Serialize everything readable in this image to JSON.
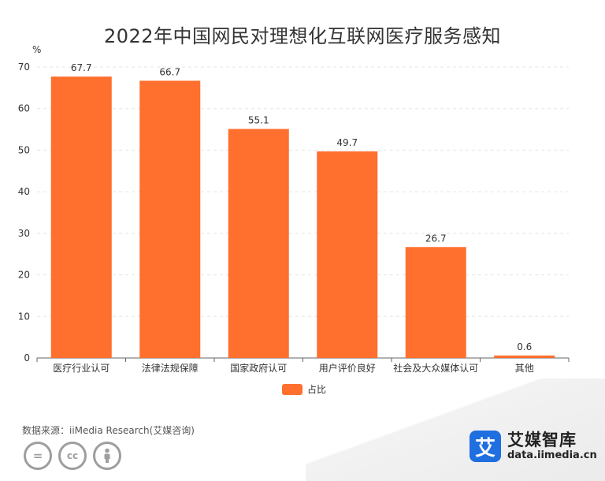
{
  "chart_data": {
    "type": "bar",
    "title": "2022年中国网民对理想化互联网医疗服务感知",
    "ylabel": "%",
    "xlabel": "",
    "ylim": [
      0,
      70
    ],
    "yticks": [
      0,
      10,
      20,
      30,
      40,
      50,
      60,
      70
    ],
    "categories": [
      "医疗行业认可",
      "法律法规保障",
      "国家政府认可",
      "用户评价良好",
      "社会及大众媒体认可",
      "其他"
    ],
    "series": [
      {
        "name": "占比",
        "values": [
          67.7,
          66.7,
          55.1,
          49.7,
          26.7,
          0.6
        ]
      }
    ],
    "value_labels": [
      "67.7",
      "66.7",
      "55.1",
      "49.7",
      "26.7",
      "0.6"
    ],
    "legend_position": "bottom",
    "grid": true
  },
  "colors": {
    "bar": "#ff6f2e",
    "grid": "#e5e5e5",
    "axis": "#666666"
  },
  "source": "数据来源：iiMedia Research(艾媒咨询)",
  "license_icons": [
    "=",
    "cc",
    "person"
  ],
  "brand": {
    "logo_char": "艾",
    "name": "艾媒智库",
    "url": "data.iimedia.cn"
  }
}
